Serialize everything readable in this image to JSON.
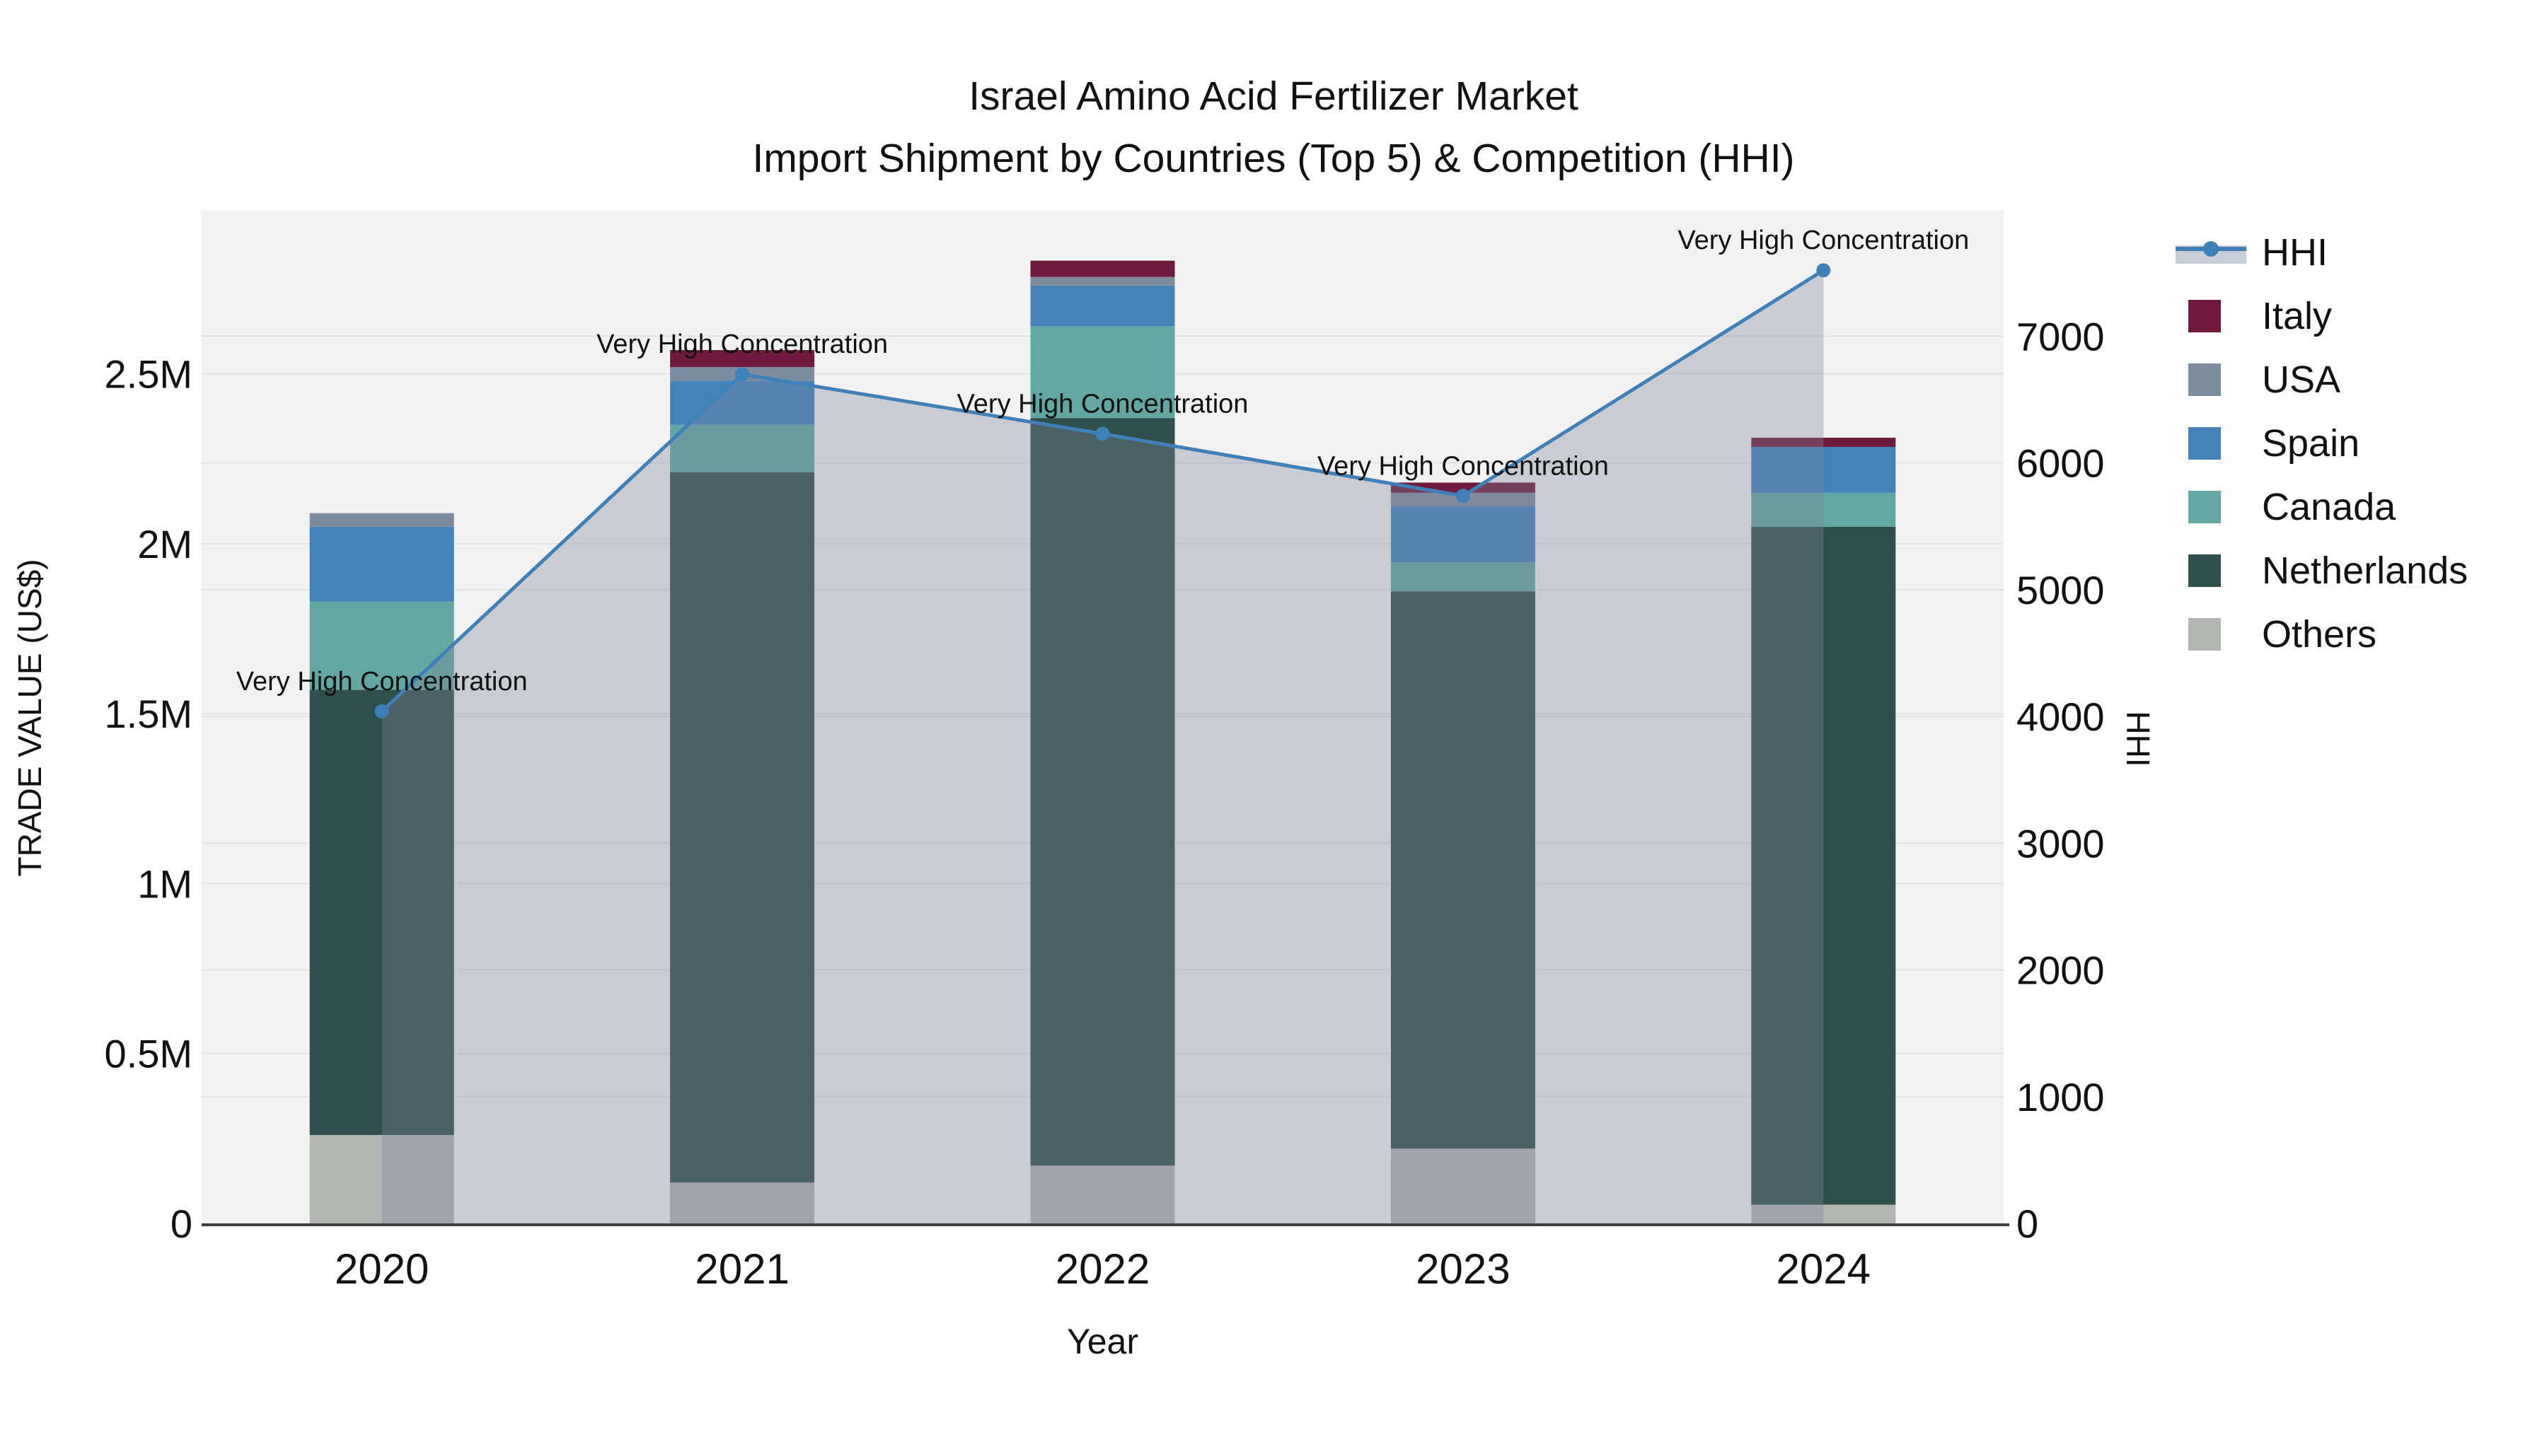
{
  "title": {
    "line1": "Israel Amino Acid Fertilizer Market",
    "line2": "Import Shipment by Countries (Top 5) & Competition (HHI)"
  },
  "axes": {
    "x": {
      "label": "Year",
      "categories": [
        "2020",
        "2021",
        "2022",
        "2023",
        "2024"
      ]
    },
    "y_left": {
      "label": "TRADE VALUE (US$)",
      "tick_values": [
        0,
        500000,
        1000000,
        1500000,
        2000000,
        2500000
      ],
      "tick_labels": [
        "0",
        "0.5M",
        "1M",
        "1.5M",
        "2M",
        "2.5M"
      ],
      "range": [
        0,
        2980000
      ]
    },
    "y_right": {
      "label": "HHI",
      "tick_values": [
        0,
        1000,
        2000,
        3000,
        4000,
        5000,
        6000,
        7000
      ],
      "tick_labels": [
        "0",
        "1000",
        "2000",
        "3000",
        "4000",
        "5000",
        "6000",
        "7000"
      ],
      "range": [
        0,
        7990
      ]
    }
  },
  "legend": {
    "items": [
      {
        "label": "HHI",
        "type": "line",
        "color": "#4080b8",
        "band_color": "#c9ced8"
      },
      {
        "label": "Italy",
        "type": "swatch",
        "color": "#6e1a3c"
      },
      {
        "label": "USA",
        "type": "swatch",
        "color": "#7e8ca0"
      },
      {
        "label": "Spain",
        "type": "swatch",
        "color": "#4482b8"
      },
      {
        "label": "Canada",
        "type": "swatch",
        "color": "#62a7a1"
      },
      {
        "label": "Netherlands",
        "type": "swatch",
        "color": "#2f4f4b"
      },
      {
        "label": "Others",
        "type": "swatch",
        "color": "#b4b6b4"
      }
    ]
  },
  "colors": {
    "plot_background": "#f2f2f2",
    "gridline": "#e3e3e5",
    "axis_spine": "#3d3d3d",
    "hhi_line": "#4080b8",
    "hhi_area_fill": "rgba(125,136,156,0.35)",
    "text": "#111111"
  },
  "chart_data": {
    "type": "stacked-bar+line",
    "title": "Israel Amino Acid Fertilizer Market — Import Shipment by Countries (Top 5) & Competition (HHI)",
    "xlabel": "Year",
    "ylabel_left": "TRADE VALUE (US$)",
    "ylabel_right": "HHI",
    "categories": [
      "2020",
      "2021",
      "2022",
      "2023",
      "2024"
    ],
    "bar_series_bottom_to_top": [
      {
        "name": "Others",
        "color": "#b4b6b4",
        "values": [
          260000,
          120000,
          170000,
          220000,
          55000
        ]
      },
      {
        "name": "Netherlands",
        "color": "#2f4f4b",
        "values": [
          1310000,
          2090000,
          2200000,
          1640000,
          1995000
        ]
      },
      {
        "name": "Canada",
        "color": "#62a7a1",
        "values": [
          260000,
          140000,
          270000,
          85000,
          100000
        ]
      },
      {
        "name": "Spain",
        "color": "#4482b8",
        "values": [
          220000,
          130000,
          120000,
          165000,
          135000
        ]
      },
      {
        "name": "USA",
        "color": "#7e8ca0",
        "values": [
          40000,
          40000,
          25000,
          40000,
          0
        ]
      },
      {
        "name": "Italy",
        "color": "#6e1a3c",
        "values": [
          0,
          50000,
          48000,
          30000,
          27000
        ]
      }
    ],
    "bar_totals": [
      2090000,
      2570000,
      2833000,
      2180000,
      2312000
    ],
    "line_series": {
      "name": "HHI",
      "color": "#4080b8",
      "values": [
        4040,
        6700,
        6230,
        5740,
        7520
      ],
      "area_fill": "rgba(125,136,156,0.35)",
      "point_annotations": [
        "Very High Concentration",
        "Very High Concentration",
        "Very High Concentration",
        "Very High Concentration",
        "Very High Concentration"
      ]
    },
    "ylim_left": [
      0,
      2980000
    ],
    "ylim_right": [
      0,
      7990
    ],
    "grid": "horizontal lines at every left tick (0.5M steps) and every right tick (1000 steps)",
    "legend_position": "right"
  }
}
